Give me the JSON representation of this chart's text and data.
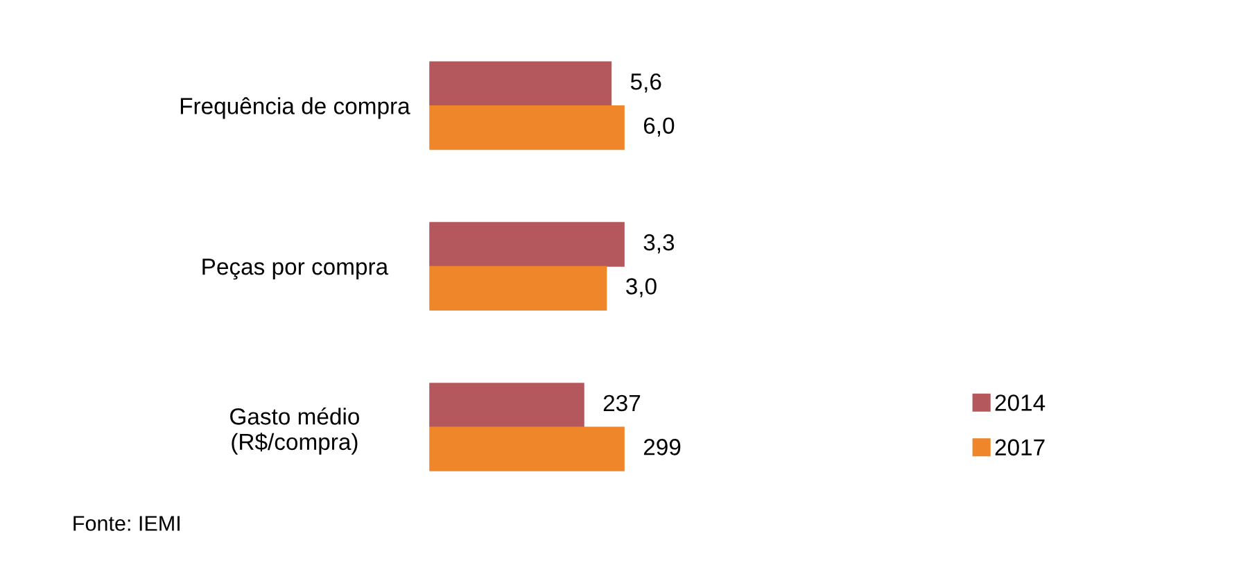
{
  "chart_data": [
    {
      "type": "bar",
      "orientation": "horizontal",
      "categories": [
        "Frequência de compra"
      ],
      "tick_labels": "y",
      "grid": false,
      "legend": false,
      "series": [
        {
          "color": "#b5585e",
          "values": [
            5.6
          ],
          "value_labels": [
            "5,6"
          ]
        },
        {
          "color": "#f0862a",
          "values": [
            6.0
          ],
          "value_labels": [
            "6,0"
          ]
        }
      ]
    },
    {
      "type": "bar",
      "orientation": "horizontal",
      "categories": [
        "Peças por compra"
      ],
      "tick_labels": "y",
      "grid": false,
      "legend": false,
      "series": [
        {
          "color": "#b5585e",
          "values": [
            3.3
          ],
          "value_labels": [
            "3,3"
          ]
        },
        {
          "color": "#f0862a",
          "values": [
            3.0
          ],
          "value_labels": [
            "3,0"
          ]
        }
      ]
    },
    {
      "type": "bar",
      "orientation": "horizontal",
      "categories": [
        "Gasto médio\n(R$/compra)"
      ],
      "tick_labels": "y",
      "data_labels": true,
      "grid": false,
      "legend": "right",
      "annotations": [
        "Fonte: IEMI"
      ],
      "series": [
        {
          "name": "2014",
          "color": "#b5585e",
          "values": [
            237
          ]
        },
        {
          "name": "2017",
          "color": "#f0862a",
          "values": [
            299
          ]
        }
      ]
    }
  ]
}
